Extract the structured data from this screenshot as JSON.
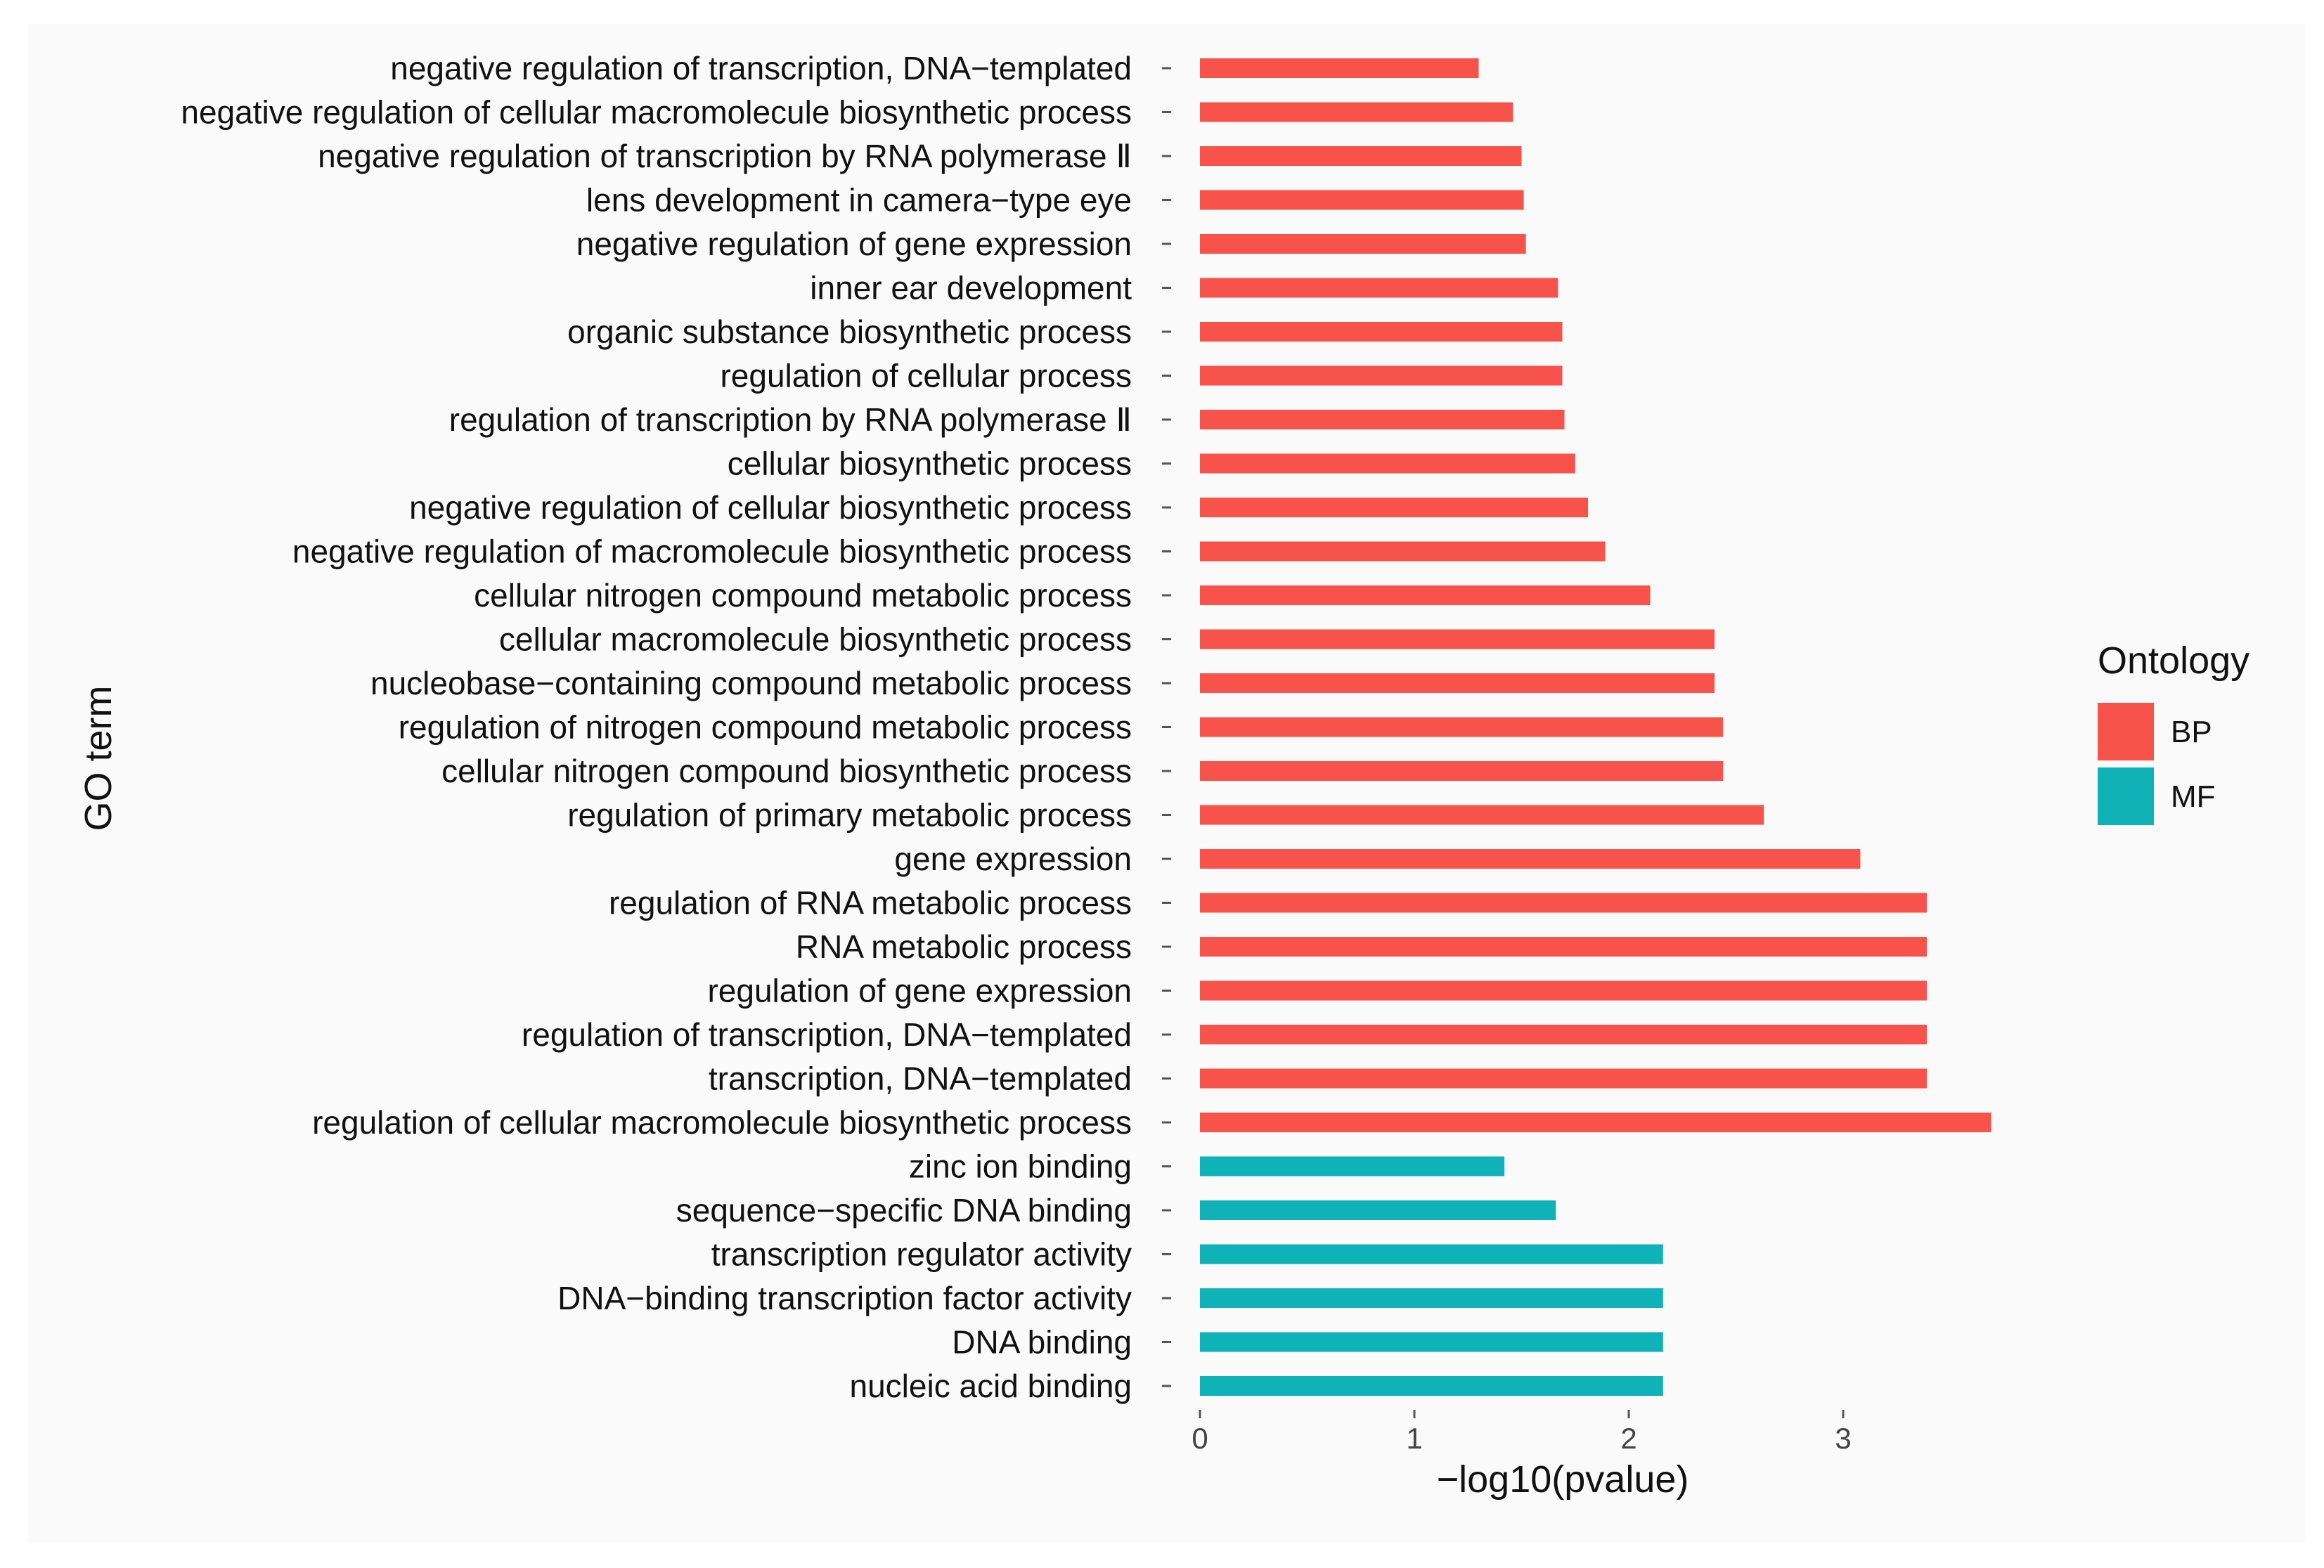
{
  "chart_data": {
    "type": "bar",
    "orientation": "horizontal",
    "xlabel": "−log10(pvalue)",
    "ylabel": "GO term",
    "xlim": [
      0,
      3.8
    ],
    "xticks": [
      "0",
      "1",
      "2",
      "3"
    ],
    "xtick_values": [
      0,
      1,
      2,
      3
    ],
    "grid": false,
    "legend": {
      "title": "Ontology",
      "position": "right",
      "entries": [
        {
          "key": "BP",
          "label": "BP",
          "color": "#f8534b"
        },
        {
          "key": "MF",
          "label": "MF",
          "color": "#0fb3b7"
        }
      ]
    },
    "bars": [
      {
        "label": "negative regulation of transcription, DNA−templated",
        "value": 1.3,
        "ontology": "BP"
      },
      {
        "label": "negative regulation of cellular macromolecule biosynthetic process",
        "value": 1.46,
        "ontology": "BP"
      },
      {
        "label": "negative regulation of transcription by RNA polymerase Ⅱ",
        "value": 1.5,
        "ontology": "BP"
      },
      {
        "label": "lens development in camera−type eye",
        "value": 1.51,
        "ontology": "BP"
      },
      {
        "label": "negative regulation of gene expression",
        "value": 1.52,
        "ontology": "BP"
      },
      {
        "label": "inner ear development",
        "value": 1.67,
        "ontology": "BP"
      },
      {
        "label": "organic substance biosynthetic process",
        "value": 1.69,
        "ontology": "BP"
      },
      {
        "label": "regulation of cellular process",
        "value": 1.69,
        "ontology": "BP"
      },
      {
        "label": "regulation of transcription by RNA polymerase Ⅱ",
        "value": 1.7,
        "ontology": "BP"
      },
      {
        "label": "cellular biosynthetic process",
        "value": 1.75,
        "ontology": "BP"
      },
      {
        "label": "negative regulation of cellular biosynthetic process",
        "value": 1.81,
        "ontology": "BP"
      },
      {
        "label": "negative regulation of macromolecule biosynthetic process",
        "value": 1.89,
        "ontology": "BP"
      },
      {
        "label": "cellular nitrogen compound metabolic process",
        "value": 2.1,
        "ontology": "BP"
      },
      {
        "label": "cellular macromolecule biosynthetic process",
        "value": 2.4,
        "ontology": "BP"
      },
      {
        "label": "nucleobase−containing compound metabolic process",
        "value": 2.4,
        "ontology": "BP"
      },
      {
        "label": "regulation of nitrogen compound metabolic process",
        "value": 2.44,
        "ontology": "BP"
      },
      {
        "label": "cellular nitrogen compound biosynthetic process",
        "value": 2.44,
        "ontology": "BP"
      },
      {
        "label": "regulation of primary metabolic process",
        "value": 2.63,
        "ontology": "BP"
      },
      {
        "label": "gene expression",
        "value": 3.08,
        "ontology": "BP"
      },
      {
        "label": "regulation of RNA metabolic process",
        "value": 3.39,
        "ontology": "BP"
      },
      {
        "label": "RNA metabolic process",
        "value": 3.39,
        "ontology": "BP"
      },
      {
        "label": "regulation of gene expression",
        "value": 3.39,
        "ontology": "BP"
      },
      {
        "label": "regulation of transcription, DNA−templated",
        "value": 3.39,
        "ontology": "BP"
      },
      {
        "label": "transcription, DNA−templated",
        "value": 3.39,
        "ontology": "BP"
      },
      {
        "label": "regulation of cellular macromolecule biosynthetic process",
        "value": 3.69,
        "ontology": "BP"
      },
      {
        "label": "zinc ion binding",
        "value": 1.42,
        "ontology": "MF"
      },
      {
        "label": "sequence−specific DNA binding",
        "value": 1.66,
        "ontology": "MF"
      },
      {
        "label": "transcription regulator activity",
        "value": 2.16,
        "ontology": "MF"
      },
      {
        "label": "DNA−binding transcription factor activity",
        "value": 2.16,
        "ontology": "MF"
      },
      {
        "label": "DNA binding",
        "value": 2.16,
        "ontology": "MF"
      },
      {
        "label": "nucleic acid binding",
        "value": 2.16,
        "ontology": "MF"
      }
    ]
  }
}
